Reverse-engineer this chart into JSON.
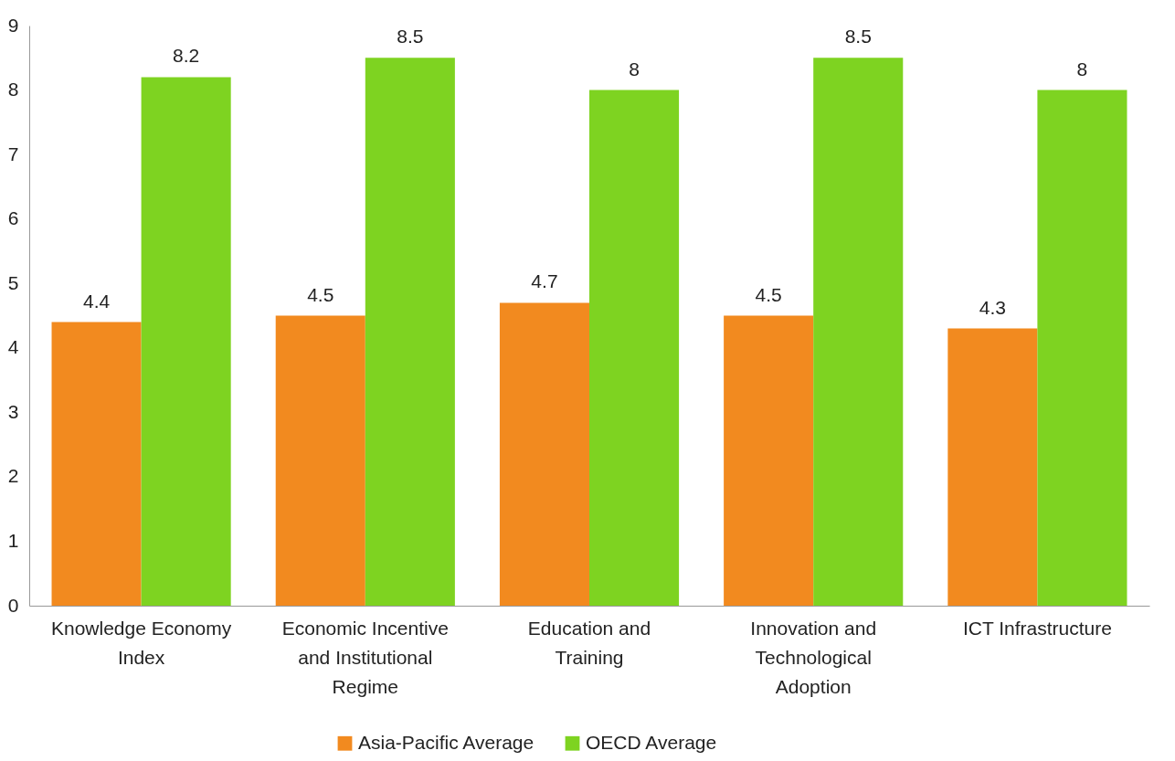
{
  "chart_data": {
    "type": "bar",
    "categories": [
      "Knowledge Economy Index",
      "Economic Incentive and Institutional Regime",
      "Education and Training",
      "Innovation and Technological Adoption",
      "ICT Infrastructure"
    ],
    "series": [
      {
        "name": "Asia-Pacific Average",
        "color": "#f28a1f",
        "values": [
          4.4,
          4.5,
          4.7,
          4.5,
          4.3
        ]
      },
      {
        "name": "OECD Average",
        "color": "#7ed321",
        "values": [
          8.2,
          8.5,
          8,
          8.5,
          8
        ]
      }
    ],
    "ylim": [
      0,
      9
    ],
    "yticks": [
      0,
      1,
      2,
      3,
      4,
      5,
      6,
      7,
      8,
      9
    ],
    "data_labels": true,
    "legend": "bottom",
    "grid": false
  }
}
